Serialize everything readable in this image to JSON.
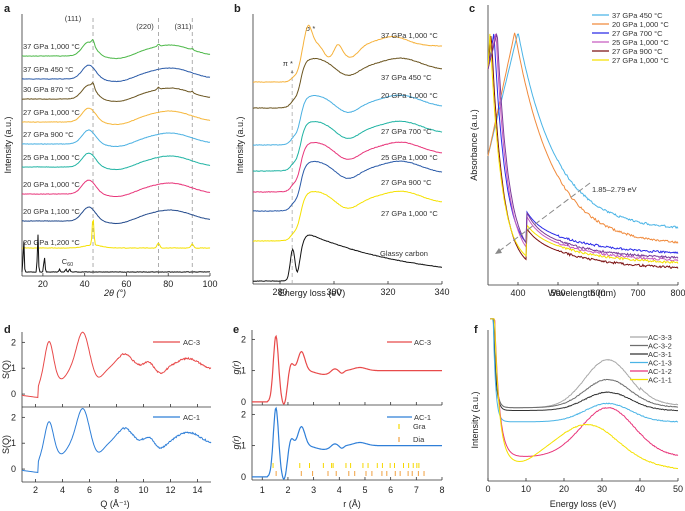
{
  "chart_data": [
    {
      "panel": "a",
      "type": "line",
      "xlabel": "2θ (°)",
      "ylabel": "Intensity (a.u.)",
      "xlim": [
        10,
        100
      ],
      "xticks": [
        20,
        40,
        60,
        80,
        100
      ],
      "reference_lines_x": [
        44,
        75.3,
        91.5
      ],
      "peak_labels": [
        {
          "text": "(111)",
          "x": 44
        },
        {
          "text": "(220)",
          "x": 75
        },
        {
          "text": "(311)",
          "x": 91
        }
      ],
      "series": [
        {
          "name": "37 GPa 1,000 °C",
          "color": "#4cb848",
          "shape": "broad-sharp"
        },
        {
          "name": "37 GPa 450 °C",
          "color": "#2a5aa8",
          "shape": "broad"
        },
        {
          "name": "30 GPa 870 °C",
          "color": "#6b5520",
          "shape": "broad-sharp"
        },
        {
          "name": "27 GPa 1,000 °C",
          "color": "#f6b73c",
          "shape": "broad"
        },
        {
          "name": "27 GPa 900 °C",
          "color": "#4ab0e2",
          "shape": "broad"
        },
        {
          "name": "25 GPa 1,000 °C",
          "color": "#1fb3a3",
          "shape": "broad"
        },
        {
          "name": "20 GPa 1,000 °C",
          "color": "#e8357a",
          "shape": "broad"
        },
        {
          "name": "20 GPa 1,100 °C",
          "color": "#234a8c",
          "shape": "broad"
        },
        {
          "name": "20 GPa 1,200 °C",
          "color": "#f5e100",
          "shape": "crystalline"
        },
        {
          "name": "C60",
          "color": "#111111",
          "shape": "c60"
        }
      ],
      "c60_label": "C60"
    },
    {
      "panel": "b",
      "type": "line",
      "xlabel": "Energy loss (eV)",
      "ylabel": "Intensity (a.u.)",
      "xlim": [
        270,
        340
      ],
      "xticks": [
        280,
        300,
        320,
        340
      ],
      "reference_lines_x": [
        284.5
      ],
      "annotations": [
        {
          "text": "σ *",
          "x": 290
        },
        {
          "text": "π *",
          "x": 284.5
        }
      ],
      "series": [
        {
          "name": "37 GPa 1,000 °C",
          "color": "#f6b23c"
        },
        {
          "name": "37 GPa 450 °C",
          "color": "#6b5520"
        },
        {
          "name": "20 GPa 1,000 °C",
          "color": "#4ab0e2"
        },
        {
          "name": "27 GPa 700 °C",
          "color": "#1fb3a3"
        },
        {
          "name": "25 GPa 1,000 °C",
          "color": "#e8357a"
        },
        {
          "name": "27 GPa 900 °C",
          "color": "#2a5aa8"
        },
        {
          "name": "27 GPa 1,000 °C",
          "color": "#f5e100"
        },
        {
          "name": "Glassy carbon",
          "color": "#111111"
        }
      ]
    },
    {
      "panel": "c",
      "type": "line",
      "xlabel": "Wavelength (nm)",
      "ylabel": "Absorbance (a.u.)",
      "xlim": [
        325,
        800
      ],
      "xticks": [
        400,
        500,
        600,
        700,
        800
      ],
      "annotation": "1.85–2.79 eV",
      "legend": "top-right",
      "series": [
        {
          "name": "37 GPa 450 °C",
          "color": "#4ab4e6",
          "peak_nm": 400,
          "tail": 0.2
        },
        {
          "name": "20 GPa 1,000 °C",
          "color": "#f08a3c",
          "peak_nm": 392,
          "tail": 0.14
        },
        {
          "name": "27 GPa 700 °C",
          "color": "#2a2ae8",
          "peak_nm": 340,
          "tail": 0.1
        },
        {
          "name": "25 GPa 1,000 °C",
          "color": "#c85cc0",
          "peak_nm": 345,
          "tail": 0.07
        },
        {
          "name": "27 GPa 900 °C",
          "color": "#7a1010",
          "peak_nm": 333,
          "tail": 0.04
        },
        {
          "name": "27 GPa 1,000 °C",
          "color": "#f5e100",
          "peak_nm": 330,
          "tail": 0.06
        },
        {
          "name": "27 GPa 700 °C (purple)",
          "color": "#7a3a9a",
          "peak_nm": 348,
          "tail": 0.08
        }
      ]
    },
    {
      "panel": "d",
      "type": "line",
      "xlabel": "Q (Å⁻¹)",
      "ylabel": "S(Q)",
      "xlim": [
        1,
        15
      ],
      "ylim": [
        -0.5,
        2.4
      ],
      "xticks": [
        2,
        4,
        6,
        8,
        10,
        12,
        14
      ],
      "yticks": [
        0,
        1,
        2
      ],
      "series": [
        {
          "name": "AC-3",
          "color": "#e84a4a",
          "peaks": [
            [
              3.0,
              2.0
            ],
            [
              5.5,
              2.2
            ],
            [
              8.6,
              1.35
            ],
            [
              10.4,
              1.05
            ],
            [
              13.3,
              1.2
            ]
          ],
          "end": 0.9
        },
        {
          "name": "AC-1",
          "color": "#2f7fd8",
          "peaks": [
            [
              3.0,
              1.8
            ],
            [
              5.5,
              2.15
            ],
            [
              8.6,
              1.38
            ],
            [
              10.4,
              1.05
            ],
            [
              13.3,
              1.22
            ]
          ],
          "end": 0.95
        }
      ]
    },
    {
      "panel": "e",
      "type": "line",
      "xlabel": "r (Å)",
      "ylabel": "g(r)",
      "xlim": [
        0.6,
        8
      ],
      "ylim": [
        -0.1,
        2.3
      ],
      "xticks": [
        1,
        2,
        3,
        4,
        5,
        6,
        7,
        8
      ],
      "yticks": [
        0,
        1,
        2
      ],
      "series": [
        {
          "name": "AC-3",
          "color": "#e84a4a",
          "peaks": [
            [
              1.53,
              2.05
            ],
            [
              2.52,
              1.65
            ],
            [
              3.0,
              0.95
            ],
            [
              3.8,
              1.08
            ],
            [
              4.8,
              1.1
            ]
          ]
        },
        {
          "name": "AC-1",
          "color": "#2f7fd8",
          "peaks": [
            [
              1.53,
              2.15
            ],
            [
              2.52,
              1.65
            ],
            [
              3.0,
              0.95
            ],
            [
              3.8,
              1.1
            ],
            [
              4.8,
              1.1
            ]
          ]
        }
      ],
      "reference_markers": [
        {
          "name": "Gra",
          "color": "#f5d800",
          "r": [
            1.42,
            2.46,
            2.84,
            3.38,
            3.7,
            3.76,
            4.26,
            4.44,
            4.92,
            5.12,
            5.48,
            5.68,
            5.98,
            6.15,
            6.5,
            6.7,
            6.88,
            7.02,
            7.1
          ]
        },
        {
          "name": "Dia",
          "color": "#f0a040",
          "r": [
            1.54,
            2.52,
            2.96,
            3.56,
            3.88,
            4.37,
            4.6,
            5.04,
            5.27,
            5.66,
            5.85,
            6.18,
            6.37,
            6.68,
            6.84,
            7.08,
            7.3
          ]
        }
      ]
    },
    {
      "panel": "f",
      "type": "line",
      "xlabel": "Energy loss (eV)",
      "ylabel": "Intensity (a.u.)",
      "xlim": [
        0,
        50
      ],
      "xticks": [
        0,
        10,
        20,
        30,
        40,
        50
      ],
      "legend": "top-right",
      "series": [
        {
          "name": "AC-3-3",
          "color": "#a8a8a8",
          "base": 0.52,
          "peak": 0.86,
          "end": 0.62
        },
        {
          "name": "AC-3-2",
          "color": "#6e6e6e",
          "base": 0.52,
          "peak": 0.72,
          "end": 0.54
        },
        {
          "name": "AC-3-1",
          "color": "#333333",
          "base": 0.5,
          "peak": 0.63,
          "end": 0.5
        },
        {
          "name": "AC-1-3",
          "color": "#4ab4e6",
          "base": 0.42,
          "peak": 0.55,
          "end": 0.42
        },
        {
          "name": "AC-1-2",
          "color": "#e8357a",
          "base": 0.17,
          "peak": 0.52,
          "end": 0.18
        },
        {
          "name": "AC-1-1",
          "color": "#f5e100",
          "base": 0.14,
          "peak": 0.4,
          "end": 0.03
        }
      ]
    }
  ],
  "labels": {
    "a": "a",
    "b": "b",
    "c": "c",
    "d": "d",
    "e": "e",
    "f": "f",
    "a_xlabel": "2θ (°)",
    "a_ylabel": "Intensity (a.u.)",
    "b_xlabel": "Energy loss (eV)",
    "b_ylabel": "Intensity (a.u.)",
    "c_xlabel": "Wavelength (nm)",
    "c_ylabel": "Absorbance (a.u.)",
    "d_xlabel": "Q (Å⁻¹)",
    "d_ylabel": "S(Q)",
    "e_xlabel": "r (Å)",
    "e_ylabel": "g(r)",
    "f_xlabel": "Energy loss (eV)",
    "f_ylabel": "Intensity (a.u.)"
  }
}
